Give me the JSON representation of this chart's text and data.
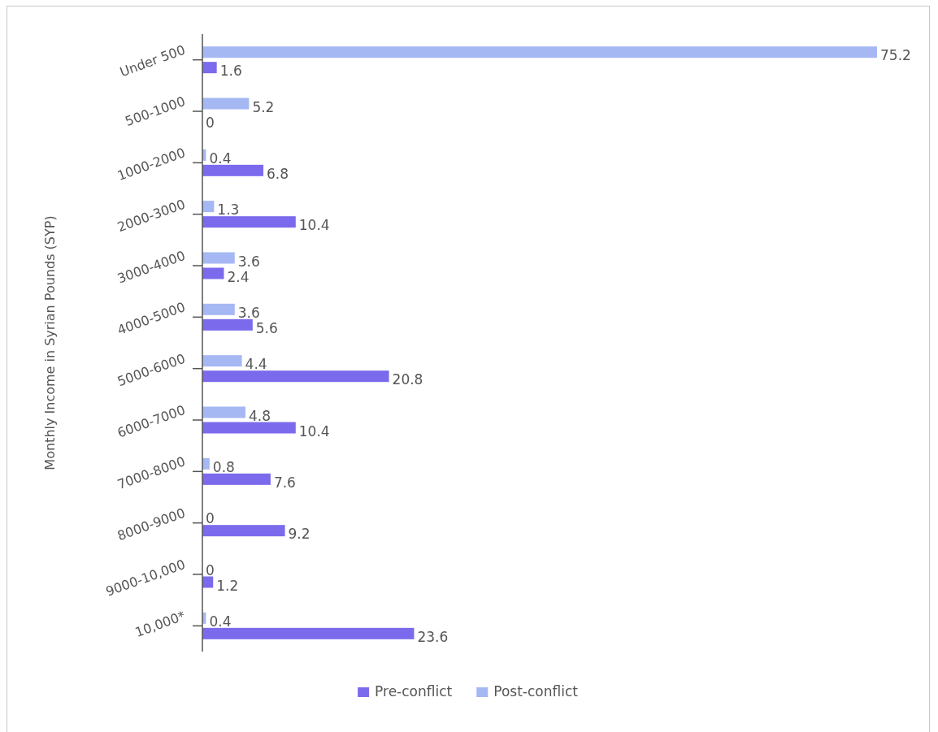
{
  "chart_data": {
    "type": "bar",
    "orientation": "horizontal",
    "ylabel": "Monthly Income in Syrian Pounds (SYP)",
    "categories": [
      "Under 500",
      "500-1000",
      "1000-2000",
      "2000-3000",
      "3000-4000",
      "4000-5000",
      "5000-6000",
      "6000-7000",
      "7000-8000",
      "8000-9000",
      "9000-10,000",
      "10,000*"
    ],
    "series": [
      {
        "name": "Pre-conflict",
        "color": "#7b6bec",
        "values": [
          1.6,
          0,
          6.8,
          10.4,
          2.4,
          5.6,
          20.8,
          10.4,
          7.6,
          9.2,
          1.2,
          23.6
        ]
      },
      {
        "name": "Post-conflict",
        "color": "#a6b8f4",
        "values": [
          75.2,
          5.2,
          0.4,
          1.3,
          3.6,
          3.6,
          4.4,
          4.8,
          0.8,
          0,
          0,
          0.4
        ]
      }
    ],
    "data_labels": true,
    "tick_labels": "y",
    "legend": "bottom"
  }
}
